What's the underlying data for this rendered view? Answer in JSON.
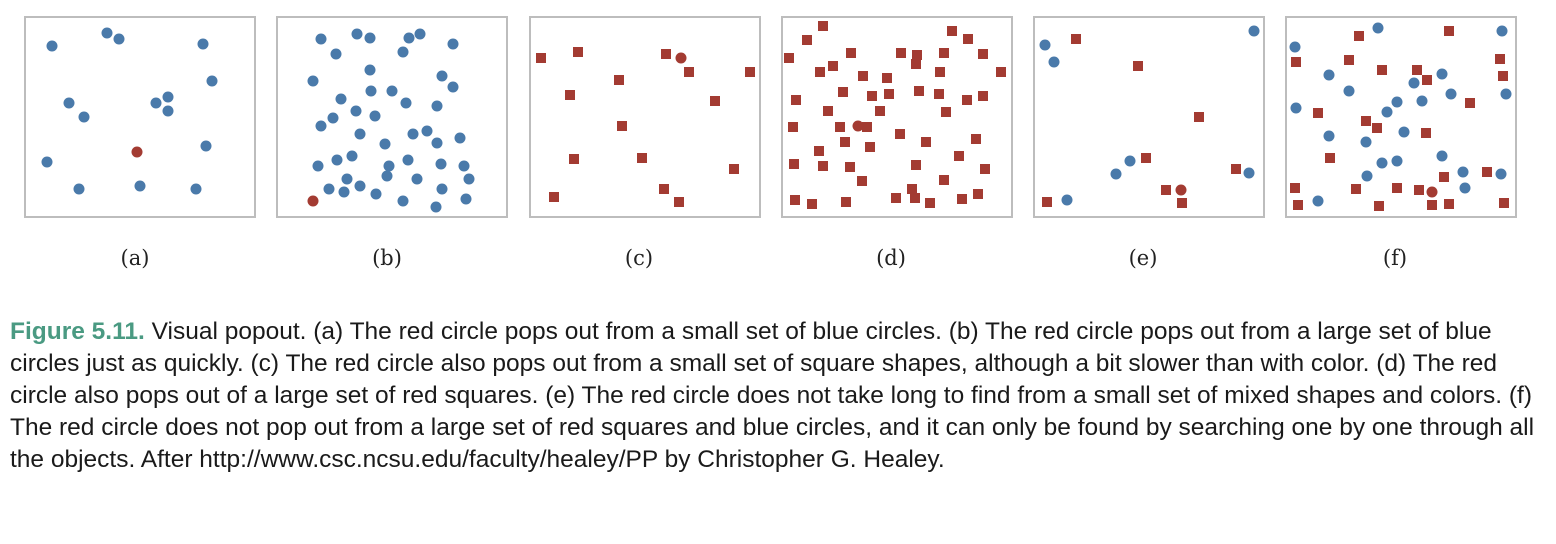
{
  "colors": {
    "blue": "#4a7aaa",
    "red": "#a33b32",
    "frame": "#bdbdbd",
    "caption_label": "#4a9a82"
  },
  "panels": [
    {
      "label": "(a)",
      "circles_blue": [
        [
          52,
          46
        ],
        [
          107,
          33
        ],
        [
          119,
          39
        ],
        [
          203,
          44
        ],
        [
          212,
          81
        ],
        [
          69,
          103
        ],
        [
          156,
          103
        ],
        [
          168,
          97
        ],
        [
          168,
          111
        ],
        [
          84,
          117
        ],
        [
          206,
          146
        ],
        [
          47,
          162
        ],
        [
          79,
          189
        ],
        [
          140,
          186
        ],
        [
          196,
          189
        ]
      ],
      "squares_red": [],
      "target": [
        137,
        152
      ]
    },
    {
      "label": "(b)",
      "circles_blue": [
        [
          321,
          39
        ],
        [
          357,
          34
        ],
        [
          370,
          38
        ],
        [
          409,
          38
        ],
        [
          420,
          34
        ],
        [
          453,
          44
        ],
        [
          336,
          54
        ],
        [
          403,
          52
        ],
        [
          370,
          70
        ],
        [
          313,
          81
        ],
        [
          442,
          76
        ],
        [
          371,
          91
        ],
        [
          392,
          91
        ],
        [
          453,
          87
        ],
        [
          341,
          99
        ],
        [
          406,
          103
        ],
        [
          437,
          106
        ],
        [
          333,
          118
        ],
        [
          356,
          111
        ],
        [
          375,
          116
        ],
        [
          321,
          126
        ],
        [
          360,
          134
        ],
        [
          413,
          134
        ],
        [
          427,
          131
        ],
        [
          385,
          144
        ],
        [
          437,
          143
        ],
        [
          460,
          138
        ],
        [
          352,
          156
        ],
        [
          337,
          160
        ],
        [
          408,
          160
        ],
        [
          318,
          166
        ],
        [
          389,
          166
        ],
        [
          441,
          164
        ],
        [
          464,
          166
        ],
        [
          347,
          179
        ],
        [
          417,
          179
        ],
        [
          469,
          179
        ],
        [
          329,
          189
        ],
        [
          344,
          192
        ],
        [
          360,
          186
        ],
        [
          376,
          194
        ],
        [
          442,
          189
        ],
        [
          387,
          176
        ],
        [
          403,
          201
        ],
        [
          436,
          207
        ],
        [
          466,
          199
        ]
      ],
      "squares_red": [],
      "target": [
        313,
        201
      ]
    },
    {
      "label": "(c)",
      "circles_blue": [],
      "squares_red": [
        [
          541,
          58
        ],
        [
          578,
          52
        ],
        [
          666,
          54
        ],
        [
          689,
          72
        ],
        [
          750,
          72
        ],
        [
          619,
          80
        ],
        [
          570,
          95
        ],
        [
          715,
          101
        ],
        [
          622,
          126
        ],
        [
          574,
          159
        ],
        [
          642,
          158
        ],
        [
          734,
          169
        ],
        [
          664,
          189
        ],
        [
          554,
          197
        ],
        [
          679,
          202
        ]
      ],
      "target": [
        681,
        58
      ]
    },
    {
      "label": "(d)",
      "circles_blue": [],
      "squares_red": [
        [
          823,
          26
        ],
        [
          952,
          31
        ],
        [
          968,
          39
        ],
        [
          807,
          40
        ],
        [
          833,
          66
        ],
        [
          851,
          53
        ],
        [
          901,
          53
        ],
        [
          917,
          55
        ],
        [
          944,
          53
        ],
        [
          983,
          54
        ],
        [
          789,
          58
        ],
        [
          820,
          72
        ],
        [
          863,
          76
        ],
        [
          887,
          78
        ],
        [
          916,
          64
        ],
        [
          940,
          72
        ],
        [
          1001,
          72
        ],
        [
          843,
          92
        ],
        [
          872,
          96
        ],
        [
          889,
          94
        ],
        [
          919,
          91
        ],
        [
          939,
          94
        ],
        [
          967,
          100
        ],
        [
          983,
          96
        ],
        [
          796,
          100
        ],
        [
          828,
          111
        ],
        [
          880,
          111
        ],
        [
          946,
          112
        ],
        [
          793,
          127
        ],
        [
          845,
          142
        ],
        [
          867,
          127
        ],
        [
          840,
          127
        ],
        [
          900,
          134
        ],
        [
          976,
          139
        ],
        [
          926,
          142
        ],
        [
          819,
          151
        ],
        [
          870,
          147
        ],
        [
          794,
          164
        ],
        [
          823,
          166
        ],
        [
          850,
          167
        ],
        [
          916,
          165
        ],
        [
          959,
          156
        ],
        [
          985,
          169
        ],
        [
          862,
          181
        ],
        [
          912,
          189
        ],
        [
          944,
          180
        ],
        [
          795,
          200
        ],
        [
          812,
          204
        ],
        [
          846,
          202
        ],
        [
          896,
          198
        ],
        [
          915,
          198
        ],
        [
          930,
          203
        ],
        [
          962,
          199
        ],
        [
          978,
          194
        ]
      ],
      "target": [
        858,
        126
      ]
    },
    {
      "label": "(e)",
      "circles_blue": [
        [
          1045,
          45
        ],
        [
          1054,
          62
        ],
        [
          1254,
          31
        ],
        [
          1130,
          161
        ],
        [
          1116,
          174
        ],
        [
          1249,
          173
        ],
        [
          1067,
          200
        ]
      ],
      "squares_red": [
        [
          1076,
          39
        ],
        [
          1138,
          66
        ],
        [
          1199,
          117
        ],
        [
          1146,
          158
        ],
        [
          1236,
          169
        ],
        [
          1166,
          190
        ],
        [
          1047,
          202
        ],
        [
          1182,
          203
        ]
      ],
      "target": [
        1181,
        190
      ]
    },
    {
      "label": "(f)",
      "circles_blue": [
        [
          1295,
          47
        ],
        [
          1378,
          28
        ],
        [
          1502,
          31
        ],
        [
          1329,
          75
        ],
        [
          1414,
          83
        ],
        [
          1442,
          74
        ],
        [
          1349,
          91
        ],
        [
          1296,
          108
        ],
        [
          1397,
          102
        ],
        [
          1422,
          101
        ],
        [
          1451,
          94
        ],
        [
          1506,
          94
        ],
        [
          1387,
          112
        ],
        [
          1329,
          136
        ],
        [
          1404,
          132
        ],
        [
          1366,
          142
        ],
        [
          1442,
          156
        ],
        [
          1382,
          163
        ],
        [
          1397,
          161
        ],
        [
          1463,
          172
        ],
        [
          1501,
          174
        ],
        [
          1367,
          176
        ],
        [
          1465,
          188
        ],
        [
          1318,
          201
        ]
      ],
      "squares_red": [
        [
          1359,
          36
        ],
        [
          1449,
          31
        ],
        [
          1296,
          62
        ],
        [
          1349,
          60
        ],
        [
          1382,
          70
        ],
        [
          1417,
          70
        ],
        [
          1427,
          80
        ],
        [
          1500,
          59
        ],
        [
          1503,
          76
        ],
        [
          1470,
          103
        ],
        [
          1318,
          113
        ],
        [
          1366,
          121
        ],
        [
          1377,
          128
        ],
        [
          1426,
          133
        ],
        [
          1330,
          158
        ],
        [
          1444,
          177
        ],
        [
          1487,
          172
        ],
        [
          1356,
          189
        ],
        [
          1295,
          188
        ],
        [
          1397,
          188
        ],
        [
          1419,
          190
        ],
        [
          1298,
          205
        ],
        [
          1379,
          206
        ],
        [
          1432,
          205
        ],
        [
          1449,
          204
        ],
        [
          1504,
          203
        ]
      ],
      "target": [
        1432,
        192
      ]
    }
  ],
  "caption": {
    "fig_num": "Figure 5.11.",
    "text": "Visual popout. (a) The red circle pops out from a small set of blue circles. (b) The red circle pops out from a large set of blue circles just as quickly.  (c) The red circle also pops out from a small set of square shapes, although a bit slower than with color. (d) The red circle also pops out of a large set of red squares. (e) The red circle does not take long to find from a small set of mixed shapes and colors.  (f) The red circle does not pop out from a large set of red squares and blue circles, and it can only be found by searching one by one through all the objects. After http://www.csc.ncsu.edu/faculty/healey/PP by Christopher G. Healey."
  }
}
